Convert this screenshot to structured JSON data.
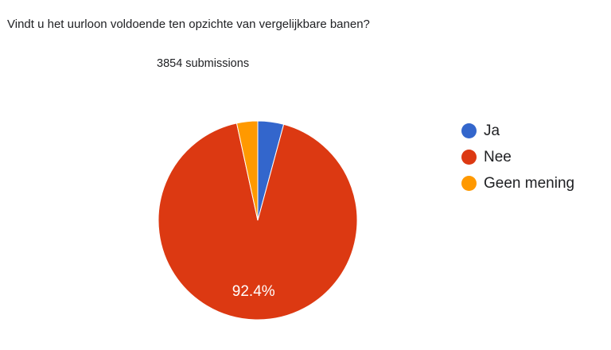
{
  "question": "Vindt u het uurloon voldoende ten opzichte van vergelijkbare banen?",
  "submissions_label": "3854 submissions",
  "chart_data": {
    "type": "pie",
    "title": "Vindt u het uurloon voldoende ten opzichte van vergelijkbare banen?",
    "subtitle": "3854 submissions",
    "categories": [
      "Ja",
      "Nee",
      "Geen mening"
    ],
    "values": [
      4.2,
      92.4,
      3.4
    ],
    "colors": [
      "#3366cc",
      "#dc3912",
      "#ff9900"
    ],
    "data_labels": [
      "",
      "92.4%",
      ""
    ],
    "legend": "right"
  }
}
